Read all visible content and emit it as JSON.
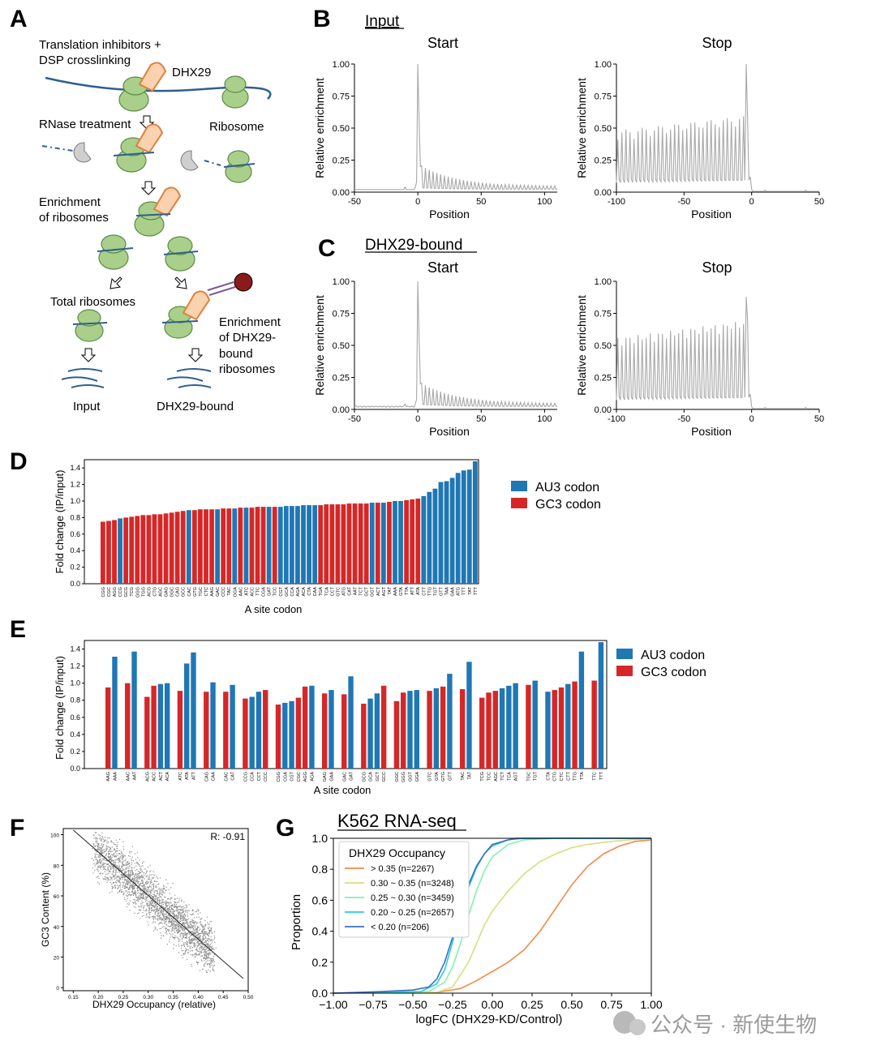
{
  "figure": {
    "panel_letters": [
      "A",
      "B",
      "C",
      "D",
      "E",
      "F",
      "G"
    ],
    "watermark": "公众号 · 新使生物"
  },
  "panelA": {
    "step1": "Translation inhibitors +",
    "step1b": "DSP crosslinking",
    "dhx29_label": "DHX29",
    "rnase": "RNase treatment",
    "ribosome_label": "Ribosome",
    "enrich1": "Enrichment",
    "enrich2": "of ribosomes",
    "total": "Total ribosomes",
    "enrichB1": "Enrichment",
    "enrichB2": "of DHX29-",
    "enrichB3": "bound",
    "enrichB4": "ribosomes",
    "input": "Input",
    "bound": "DHX29-bound"
  },
  "panelB": {
    "title": "Input",
    "start": "Start",
    "stop": "Stop"
  },
  "panelC": {
    "title": "DHX29-bound",
    "start": "Start",
    "stop": "Stop"
  },
  "meta": {
    "ylabel": "Relative enrichment",
    "xlabel": "Position",
    "yticks": [
      "0.00",
      "0.25",
      "0.50",
      "0.75",
      "1.00"
    ],
    "start_xticks": [
      "-50",
      "0",
      "50",
      "100"
    ],
    "stop_xticks": [
      "-100",
      "-50",
      "0",
      "50"
    ]
  },
  "chart_data": [
    {
      "id": "D",
      "type": "bar",
      "xlabel": "A site codon",
      "ylabel": "Fold change (IP/input)",
      "ylim": [
        0,
        1.5
      ],
      "yticks": [
        "0.0",
        "0.2",
        "0.4",
        "0.6",
        "0.8",
        "1.0",
        "1.2",
        "1.4"
      ],
      "legend": [
        {
          "name": "AU3 codon",
          "color": "#1f77b4"
        },
        {
          "name": "GC3 codon",
          "color": "#d62728"
        }
      ],
      "categories": [
        "CGG",
        "CGC",
        "AGG",
        "CCG",
        "GCG",
        "TCG",
        "GGG",
        "TGG",
        "ACG",
        "CTG",
        "AGC",
        "GAG",
        "GGC",
        "CAG",
        "GCC",
        "CAC",
        "GTG",
        "TGC",
        "CTC",
        "AAG",
        "GAC",
        "CCC",
        "TAC",
        "GGA",
        "AAC",
        "ATC",
        "ACC",
        "TTC",
        "CGA",
        "GAT",
        "TCC",
        "CGT",
        "GCA",
        "CCA",
        "AGA",
        "ACA",
        "CTA",
        "CAA",
        "TGA",
        "TCA",
        "CCT",
        "GTC",
        "ATG",
        "CAT",
        "AAT",
        "TCT",
        "GCT",
        "GGT",
        "ACT",
        "AGT",
        "TAT",
        "AAA",
        "GTA",
        "TTA",
        "ATT",
        "ATA",
        "CTT",
        "TTG",
        "TGT",
        "GTT",
        "TAA",
        "GAA",
        "ATG",
        "TTT",
        "TAT",
        "TTT"
      ],
      "values": [
        0.75,
        0.76,
        0.77,
        0.79,
        0.8,
        0.81,
        0.82,
        0.83,
        0.83,
        0.84,
        0.84,
        0.85,
        0.86,
        0.87,
        0.88,
        0.89,
        0.89,
        0.9,
        0.9,
        0.9,
        0.9,
        0.91,
        0.91,
        0.91,
        0.92,
        0.92,
        0.92,
        0.93,
        0.93,
        0.93,
        0.93,
        0.93,
        0.94,
        0.94,
        0.94,
        0.95,
        0.95,
        0.95,
        0.95,
        0.96,
        0.96,
        0.96,
        0.96,
        0.97,
        0.97,
        0.97,
        0.97,
        0.98,
        0.98,
        0.98,
        0.99,
        1.0,
        1.0,
        1.01,
        1.02,
        1.03,
        1.06,
        1.11,
        1.15,
        1.23,
        1.24,
        1.28,
        1.34,
        1.37,
        1.38,
        1.48
      ],
      "groups": [
        "GC",
        "GC",
        "GC",
        "AU",
        "GC",
        "GC",
        "GC",
        "GC",
        "GC",
        "GC",
        "GC",
        "GC",
        "GC",
        "GC",
        "GC",
        "AU",
        "GC",
        "GC",
        "GC",
        "GC",
        "AU",
        "GC",
        "GC",
        "AU",
        "GC",
        "AU",
        "GC",
        "GC",
        "GC",
        "AU",
        "GC",
        "AU",
        "AU",
        "AU",
        "AU",
        "AU",
        "AU",
        "AU",
        "GC",
        "GC",
        "GC",
        "GC",
        "GC",
        "GC",
        "GC",
        "GC",
        "GC",
        "AU",
        "GC",
        "AU",
        "GC",
        "AU",
        "AU",
        "GC",
        "GC",
        "GC",
        "AU",
        "AU",
        "AU",
        "AU",
        "AU",
        "AU",
        "AU",
        "AU",
        "AU",
        "AU"
      ]
    },
    {
      "id": "E",
      "type": "bar",
      "xlabel": "A site codon",
      "ylabel": "Fold change (IP/input)",
      "ylim": [
        0,
        1.5
      ],
      "yticks": [
        "0.0",
        "0.2",
        "0.4",
        "0.6",
        "0.8",
        "1.0",
        "1.2",
        "1.4"
      ],
      "legend": [
        {
          "name": "AU3 codon",
          "color": "#1f77b4"
        },
        {
          "name": "GC3 codon",
          "color": "#d62728"
        }
      ],
      "groups": [
        {
          "codons": [
            "AAG",
            "AAA"
          ],
          "types": [
            "GC",
            "AU"
          ],
          "values": [
            0.95,
            1.31
          ]
        },
        {
          "codons": [
            "AAC",
            "AAT"
          ],
          "types": [
            "GC",
            "AU"
          ],
          "values": [
            1.0,
            1.37
          ]
        },
        {
          "codons": [
            "ACG",
            "ACC",
            "ACT",
            "ACA"
          ],
          "types": [
            "GC",
            "GC",
            "AU",
            "AU"
          ],
          "values": [
            0.84,
            0.97,
            0.99,
            1.0
          ]
        },
        {
          "codons": [
            "ATC",
            "ATA",
            "ATT"
          ],
          "types": [
            "GC",
            "AU",
            "AU"
          ],
          "values": [
            0.91,
            1.23,
            1.36
          ]
        },
        {
          "codons": [
            "CAG",
            "CAA"
          ],
          "types": [
            "GC",
            "AU"
          ],
          "values": [
            0.9,
            1.01
          ]
        },
        {
          "codons": [
            "CAC",
            "CAT"
          ],
          "types": [
            "GC",
            "AU"
          ],
          "values": [
            0.9,
            0.98
          ]
        },
        {
          "codons": [
            "CCG",
            "CCA",
            "CCT",
            "CCC"
          ],
          "types": [
            "GC",
            "AU",
            "AU",
            "GC"
          ],
          "values": [
            0.82,
            0.84,
            0.9,
            0.92
          ]
        },
        {
          "codons": [
            "CGG",
            "CGA",
            "CGT",
            "CGC",
            "AGG",
            "AGA"
          ],
          "types": [
            "GC",
            "AU",
            "AU",
            "GC",
            "GC",
            "AU"
          ],
          "values": [
            0.75,
            0.77,
            0.79,
            0.83,
            0.96,
            0.97
          ]
        },
        {
          "codons": [
            "GAG",
            "GAA"
          ],
          "types": [
            "GC",
            "AU"
          ],
          "values": [
            0.88,
            0.92
          ]
        },
        {
          "codons": [
            "GAC",
            "GAT"
          ],
          "types": [
            "GC",
            "AU"
          ],
          "values": [
            0.87,
            1.08
          ]
        },
        {
          "codons": [
            "GCG",
            "GCA",
            "GCT",
            "GCC"
          ],
          "types": [
            "GC",
            "AU",
            "AU",
            "GC"
          ],
          "values": [
            0.76,
            0.82,
            0.88,
            0.97
          ]
        },
        {
          "codons": [
            "GGC",
            "GGG",
            "GGT",
            "GGA"
          ],
          "types": [
            "GC",
            "GC",
            "AU",
            "AU"
          ],
          "values": [
            0.79,
            0.89,
            0.91,
            0.92
          ]
        },
        {
          "codons": [
            "GTC",
            "GTA",
            "GTG",
            "GTT"
          ],
          "types": [
            "GC",
            "AU",
            "GC",
            "AU"
          ],
          "values": [
            0.91,
            0.94,
            0.96,
            1.11
          ]
        },
        {
          "codons": [
            "TAC",
            "TAT"
          ],
          "types": [
            "GC",
            "AU"
          ],
          "values": [
            0.93,
            1.25
          ]
        },
        {
          "codons": [
            "TCG",
            "TCC",
            "AGC",
            "TCT",
            "TCA",
            "AGT"
          ],
          "types": [
            "GC",
            "GC",
            "GC",
            "AU",
            "AU",
            "AU"
          ],
          "values": [
            0.83,
            0.89,
            0.91,
            0.94,
            0.97,
            1.0
          ]
        },
        {
          "codons": [
            "TGC",
            "TGT"
          ],
          "types": [
            "GC",
            "AU"
          ],
          "values": [
            0.98,
            1.03
          ]
        },
        {
          "codons": [
            "CTA",
            "CTG",
            "CTC",
            "CTT",
            "TTG",
            "TTA"
          ],
          "types": [
            "AU",
            "GC",
            "GC",
            "AU",
            "GC",
            "AU"
          ],
          "values": [
            0.9,
            0.92,
            0.95,
            0.99,
            1.02,
            1.37
          ]
        },
        {
          "codons": [
            "TTC",
            "TTT"
          ],
          "types": [
            "GC",
            "AU"
          ],
          "values": [
            1.03,
            1.48
          ]
        }
      ]
    },
    {
      "id": "F",
      "type": "scatter",
      "xlabel": "DHX29 Occupancy (relative)",
      "ylabel": "GC3 Content (%)",
      "annotation": "R: -0.91",
      "xlim": [
        0.13,
        0.5
      ],
      "ylim": [
        -2,
        104
      ],
      "xticks": [
        "0.15",
        "0.20",
        "0.25",
        "0.30",
        "0.35",
        "0.40",
        "0.45",
        "0.50"
      ],
      "yticks": [
        "0",
        "20",
        "40",
        "60",
        "80",
        "100"
      ],
      "fit_line": {
        "x": [
          0.15,
          0.49
        ],
        "y": [
          103,
          6
        ]
      },
      "point_cloud": {
        "x_range": [
          0.16,
          0.48
        ],
        "y_range": [
          10,
          102
        ],
        "color": "#8c8c8c"
      }
    },
    {
      "id": "G",
      "type": "line",
      "title": "K562 RNA-seq",
      "xlabel": "logFC (DHX29-KD/Control)",
      "ylabel": "Proportion",
      "xlim": [
        -1.0,
        1.0
      ],
      "ylim": [
        0.0,
        1.0
      ],
      "xticks": [
        "−1.00",
        "−0.75",
        "−0.50",
        "−0.25",
        "0.00",
        "0.25",
        "0.50",
        "0.75",
        "1.00"
      ],
      "yticks": [
        "0.0",
        "0.2",
        "0.4",
        "0.6",
        "0.8",
        "1.0"
      ],
      "legend_title": "DHX29 Occupancy",
      "series": [
        {
          "name": "> 0.35 (n=2267)",
          "color": "#f28a4a",
          "x": [
            -1.0,
            -0.35,
            -0.2,
            -0.1,
            0.0,
            0.1,
            0.2,
            0.3,
            0.4,
            0.5,
            0.6,
            0.7,
            0.8,
            0.9,
            1.0
          ],
          "y": [
            0,
            0.005,
            0.03,
            0.08,
            0.14,
            0.2,
            0.28,
            0.4,
            0.55,
            0.7,
            0.82,
            0.9,
            0.95,
            0.98,
            0.99
          ]
        },
        {
          "name": "0.30 ~ 0.35 (n=3248)",
          "color": "#d8de7f",
          "x": [
            -1.0,
            -0.35,
            -0.25,
            -0.15,
            -0.1,
            -0.05,
            0.0,
            0.1,
            0.2,
            0.3,
            0.4,
            0.5,
            0.6,
            0.75,
            1.0
          ],
          "y": [
            0,
            0.005,
            0.04,
            0.2,
            0.32,
            0.44,
            0.53,
            0.66,
            0.77,
            0.85,
            0.9,
            0.94,
            0.96,
            0.98,
            1.0
          ]
        },
        {
          "name": "0.25 ~ 0.30 (n=3459)",
          "color": "#86efb2",
          "x": [
            -1.0,
            -0.4,
            -0.3,
            -0.25,
            -0.2,
            -0.15,
            -0.1,
            -0.05,
            0.0,
            0.1,
            0.2,
            0.4,
            1.0
          ],
          "y": [
            0,
            0.01,
            0.07,
            0.17,
            0.32,
            0.5,
            0.66,
            0.79,
            0.88,
            0.96,
            0.99,
            1.0,
            1.0
          ]
        },
        {
          "name": "0.20 ~ 0.25 (n=2657)",
          "color": "#27cfd9",
          "x": [
            -1.0,
            -0.45,
            -0.35,
            -0.3,
            -0.25,
            -0.2,
            -0.15,
            -0.1,
            -0.05,
            0.0,
            0.1,
            0.2,
            1.0
          ],
          "y": [
            0,
            0.01,
            0.06,
            0.15,
            0.33,
            0.52,
            0.68,
            0.81,
            0.9,
            0.95,
            0.99,
            1.0,
            1.0
          ]
        },
        {
          "name": "< 0.20 (n=206)",
          "color": "#3a6fc4",
          "x": [
            -1.0,
            -0.7,
            -0.5,
            -0.4,
            -0.35,
            -0.3,
            -0.25,
            -0.2,
            -0.15,
            -0.1,
            -0.05,
            0.0,
            0.1,
            0.15,
            1.0
          ],
          "y": [
            0,
            0.01,
            0.02,
            0.04,
            0.09,
            0.2,
            0.36,
            0.55,
            0.7,
            0.82,
            0.9,
            0.96,
            0.99,
            1.0,
            1.0
          ]
        }
      ]
    }
  ]
}
